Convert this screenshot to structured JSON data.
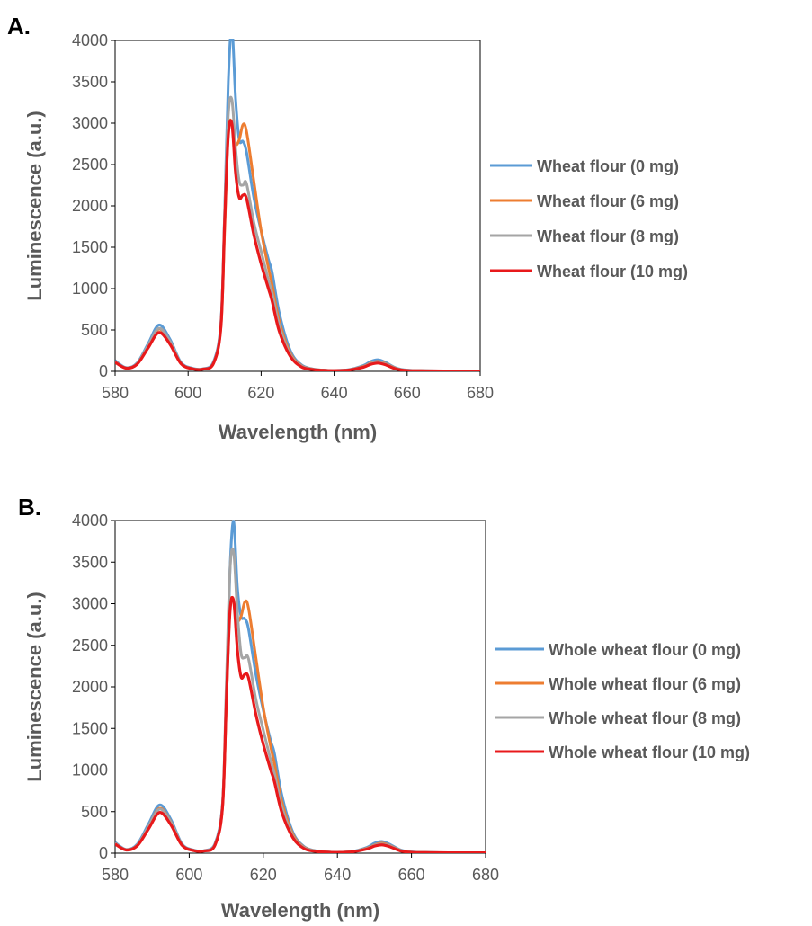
{
  "chart_data": [
    {
      "type": "line",
      "panel_label": "A.",
      "xlabel": "Wavelength (nm)",
      "ylabel": "Luminescence (a.u.)",
      "xlim": [
        580,
        680
      ],
      "ylim": [
        0,
        4000
      ],
      "xticks": [
        580,
        600,
        620,
        640,
        660,
        680
      ],
      "yticks": [
        0,
        500,
        1000,
        1500,
        2000,
        2500,
        3000,
        3500,
        4000
      ],
      "grid": false,
      "legend_position": "right",
      "x": [
        580,
        583,
        586,
        589,
        592,
        595,
        598,
        601,
        604,
        607,
        609,
        610,
        611,
        612,
        613,
        614,
        615,
        616,
        618,
        620,
        622,
        623,
        625,
        628,
        631,
        634,
        637,
        640,
        644,
        648,
        650,
        652,
        654,
        657,
        660,
        665,
        670,
        675,
        680
      ],
      "series": [
        {
          "name": "Wheat flour (0 mg)",
          "color": "#5b9bd5",
          "values": [
            130,
            45,
            100,
            330,
            560,
            390,
            110,
            40,
            30,
            120,
            600,
            1900,
            3500,
            4150,
            3300,
            2800,
            2780,
            2650,
            2100,
            1700,
            1350,
            1200,
            700,
            250,
            80,
            30,
            15,
            10,
            20,
            70,
            120,
            140,
            110,
            40,
            15,
            8,
            5,
            5,
            5
          ]
        },
        {
          "name": "Wheat flour (6 mg)",
          "color": "#ed7d31",
          "values": [
            110,
            40,
            90,
            300,
            510,
            360,
            100,
            35,
            28,
            100,
            550,
            1700,
            2900,
            3000,
            2750,
            2800,
            2980,
            2900,
            2300,
            1700,
            1250,
            1050,
            600,
            220,
            70,
            28,
            14,
            10,
            18,
            60,
            100,
            120,
            95,
            35,
            12,
            7,
            5,
            5,
            5
          ]
        },
        {
          "name": "Wheat flour (8 mg)",
          "color": "#a5a5a5",
          "values": [
            120,
            40,
            95,
            310,
            520,
            365,
            100,
            35,
            28,
            110,
            580,
            1900,
            3100,
            3280,
            2700,
            2300,
            2250,
            2270,
            1800,
            1450,
            1100,
            950,
            550,
            200,
            65,
            25,
            13,
            10,
            18,
            55,
            95,
            110,
            90,
            32,
            12,
            7,
            5,
            5,
            5
          ]
        },
        {
          "name": "Wheat flour (10 mg)",
          "color": "#e8191b",
          "values": [
            110,
            38,
            85,
            280,
            470,
            330,
            95,
            32,
            25,
            100,
            550,
            1800,
            2850,
            2990,
            2400,
            2100,
            2130,
            2090,
            1650,
            1300,
            1000,
            850,
            480,
            180,
            55,
            22,
            12,
            9,
            16,
            50,
            85,
            100,
            80,
            28,
            10,
            6,
            5,
            5,
            5
          ]
        }
      ]
    },
    {
      "type": "line",
      "panel_label": "B.",
      "xlabel": "Wavelength (nm)",
      "ylabel": "Luminescence (a.u.)",
      "xlim": [
        580,
        680
      ],
      "ylim": [
        0,
        4000
      ],
      "xticks": [
        580,
        600,
        620,
        640,
        660,
        680
      ],
      "yticks": [
        0,
        500,
        1000,
        1500,
        2000,
        2500,
        3000,
        3500,
        4000
      ],
      "grid": false,
      "legend_position": "right",
      "x": [
        580,
        583,
        586,
        589,
        592,
        595,
        598,
        601,
        604,
        607,
        609,
        610,
        611,
        612,
        613,
        614,
        615,
        616,
        618,
        620,
        622,
        623,
        625,
        628,
        631,
        634,
        637,
        640,
        644,
        648,
        650,
        652,
        654,
        657,
        660,
        665,
        670,
        675,
        680
      ],
      "series": [
        {
          "name": "Whole wheat flour (0 mg)",
          "color": "#5b9bd5",
          "values": [
            130,
            45,
            110,
            350,
            580,
            410,
            115,
            40,
            30,
            120,
            600,
            1850,
            3400,
            3990,
            3200,
            2850,
            2820,
            2700,
            2150,
            1720,
            1350,
            1200,
            700,
            250,
            80,
            30,
            15,
            10,
            20,
            70,
            120,
            140,
            110,
            40,
            15,
            8,
            5,
            5,
            5
          ]
        },
        {
          "name": "Whole wheat flour (6 mg)",
          "color": "#ed7d31",
          "values": [
            115,
            42,
            95,
            320,
            540,
            380,
            105,
            36,
            28,
            105,
            560,
            1750,
            2950,
            3020,
            2800,
            2850,
            3020,
            2950,
            2350,
            1750,
            1280,
            1080,
            620,
            225,
            72,
            28,
            14,
            10,
            18,
            60,
            100,
            120,
            95,
            35,
            12,
            7,
            5,
            5,
            5
          ]
        },
        {
          "name": "Whole wheat flour (8 mg)",
          "color": "#a5a5a5",
          "values": [
            120,
            40,
            100,
            320,
            530,
            375,
            105,
            36,
            28,
            115,
            600,
            2000,
            3400,
            3620,
            2900,
            2400,
            2350,
            2340,
            1850,
            1480,
            1120,
            960,
            560,
            205,
            66,
            25,
            13,
            10,
            18,
            55,
            95,
            110,
            90,
            32,
            12,
            7,
            5,
            5,
            5
          ]
        },
        {
          "name": "Whole wheat flour (10 mg)",
          "color": "#e8191b",
          "values": [
            110,
            38,
            90,
            290,
            490,
            345,
            98,
            33,
            26,
            100,
            560,
            1800,
            2900,
            3030,
            2450,
            2120,
            2150,
            2110,
            1670,
            1310,
            1000,
            860,
            490,
            185,
            56,
            22,
            12,
            9,
            16,
            50,
            85,
            100,
            80,
            28,
            10,
            6,
            5,
            5,
            5
          ]
        }
      ]
    }
  ]
}
